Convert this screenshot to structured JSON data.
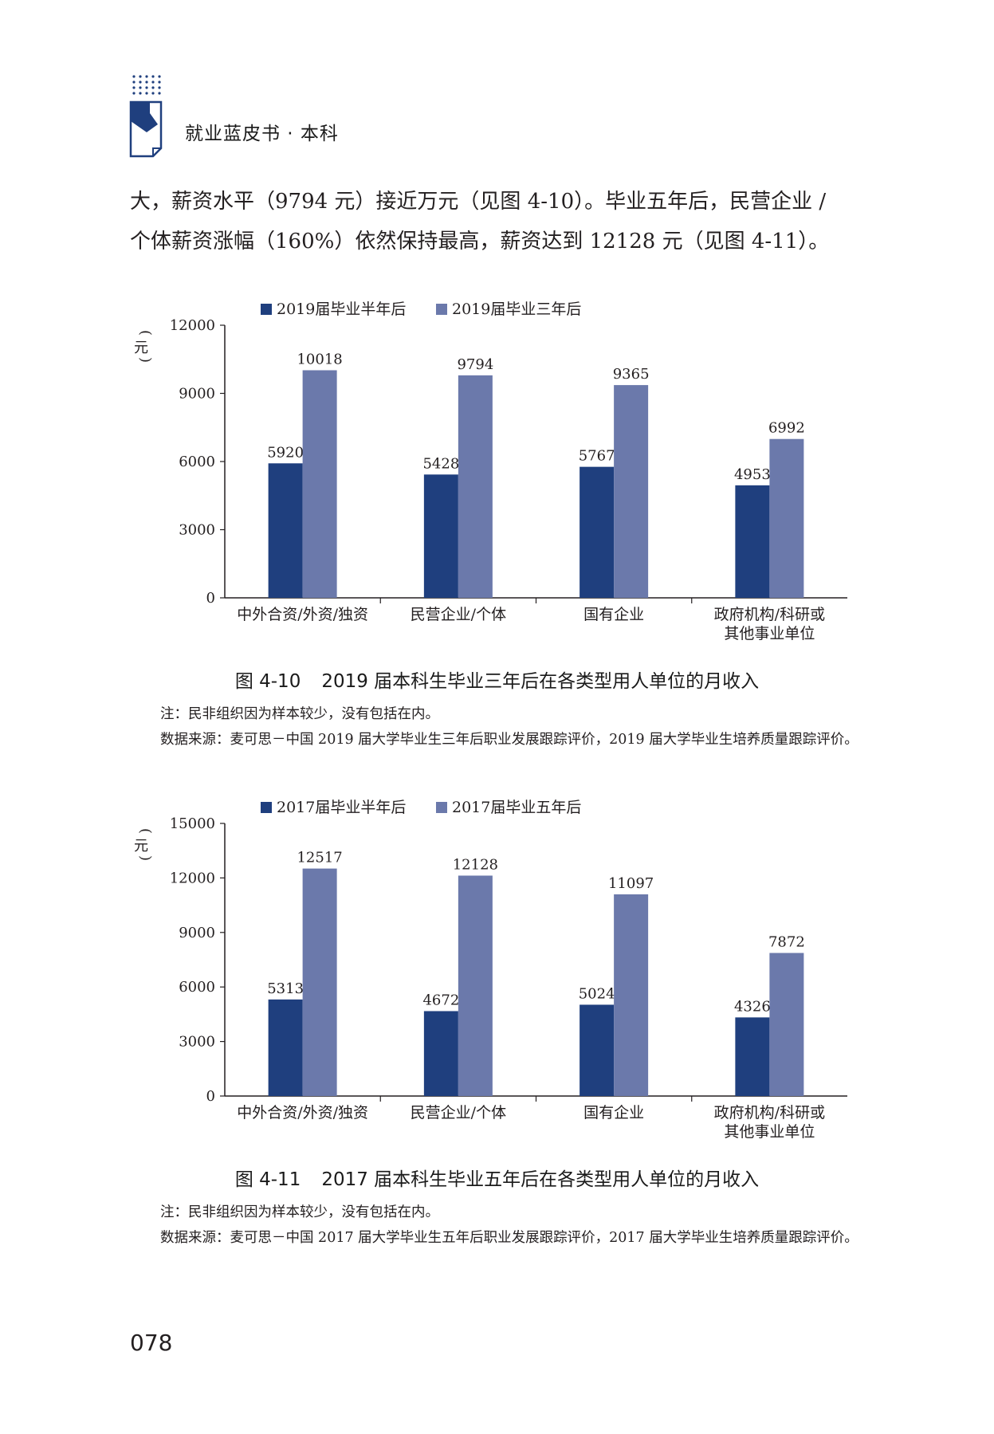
{
  "header": {
    "title": "就业蓝皮书 · 本科"
  },
  "body_text": [
    "大，薪资水平（9794 元）接近万元（见图 4-10）。毕业五年后，民营企业 /",
    "个体薪资涨幅（160%）依然保持最高，薪资达到 12128 元（见图 4-11）。"
  ],
  "colors": {
    "series1": "#1f3f7e",
    "series2": "#6b79ab",
    "brand": "#1f3f7e"
  },
  "figures": [
    {
      "caption_number": "图 4-10",
      "caption_text": "2019 届本科生毕业三年后在各类型用人单位的月收入",
      "note": "注：民非组织因为样本较少，没有包括在内。",
      "source": "数据来源：麦可思－中国 2019 届大学毕业生三年后职业发展跟踪评价，2019 届大学毕业生培养质量跟踪评价。"
    },
    {
      "caption_number": "图 4-11",
      "caption_text": "2017 届本科生毕业五年后在各类型用人单位的月收入",
      "note": "注：民非组织因为样本较少，没有包括在内。",
      "source": "数据来源：麦可思－中国 2017 届大学毕业生五年后职业发展跟踪评价，2017 届大学毕业生培养质量跟踪评价。"
    }
  ],
  "chart_data": [
    {
      "type": "bar",
      "ylabel": "元",
      "ylim": [
        0,
        12000
      ],
      "yticks": [
        0,
        3000,
        6000,
        9000,
        12000
      ],
      "categories": [
        [
          "中外合资/外资/独资"
        ],
        [
          "民营企业/个体"
        ],
        [
          "国有企业"
        ],
        [
          "政府机构/科研或",
          "其他事业单位"
        ]
      ],
      "series": [
        {
          "name": "2019届毕业半年后",
          "values": [
            5920,
            5428,
            5767,
            4953
          ]
        },
        {
          "name": "2019届毕业三年后",
          "values": [
            10018,
            9794,
            9365,
            6992
          ]
        }
      ],
      "legend": "top",
      "grid": false
    },
    {
      "type": "bar",
      "ylabel": "元",
      "ylim": [
        0,
        15000
      ],
      "yticks": [
        0,
        3000,
        6000,
        9000,
        12000,
        15000
      ],
      "categories": [
        [
          "中外合资/外资/独资"
        ],
        [
          "民营企业/个体"
        ],
        [
          "国有企业"
        ],
        [
          "政府机构/科研或",
          "其他事业单位"
        ]
      ],
      "series": [
        {
          "name": "2017届毕业半年后",
          "values": [
            5313,
            4672,
            5024,
            4326
          ]
        },
        {
          "name": "2017届毕业五年后",
          "values": [
            12517,
            12128,
            11097,
            7872
          ]
        }
      ],
      "legend": "top",
      "grid": false
    }
  ],
  "page_number": "078"
}
